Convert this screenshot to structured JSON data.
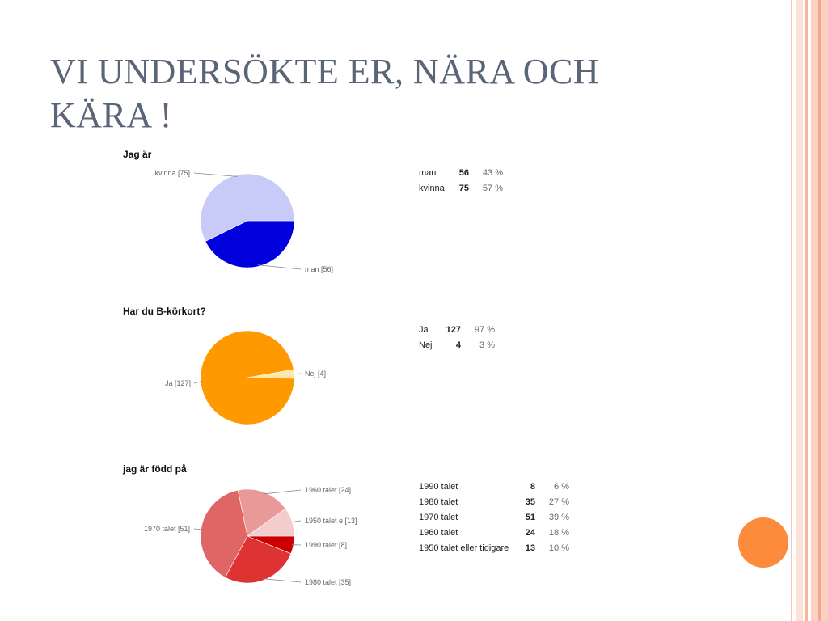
{
  "slide": {
    "title_line1": "VI UNDERSÖKTE ER, NÄRA OCH",
    "title_line2": "KÄRA  !"
  },
  "decor": {
    "stripe_colors": [
      "#f9c4b1",
      "#fde3d7",
      "#f7b49c"
    ],
    "circle_color": "#fd8b3c"
  },
  "chart_data": [
    {
      "type": "pie",
      "title": "Jag är",
      "slices": [
        {
          "label": "man",
          "count": 56,
          "percent": "43 %",
          "callout": "man [56]",
          "color": "#0000dd"
        },
        {
          "label": "kvinna",
          "count": 75,
          "percent": "57 %",
          "callout": "kvinna [75]",
          "color": "#c8cbf7"
        }
      ]
    },
    {
      "type": "pie",
      "title": "Har du B-körkort?",
      "slices": [
        {
          "label": "Ja",
          "count": 127,
          "percent": "97 %",
          "callout": "Ja [127]",
          "color": "#ff9900"
        },
        {
          "label": "Nej",
          "count": 4,
          "percent": "3 %",
          "callout": "Nej [4]",
          "color": "#fde7a9"
        }
      ]
    },
    {
      "type": "pie",
      "title": "jag är född på",
      "slices": [
        {
          "label": "1990 talet",
          "count": 8,
          "percent": "6 %",
          "callout": "1990 talet [8]",
          "color": "#cc0000"
        },
        {
          "label": "1980 talet",
          "count": 35,
          "percent": "27 %",
          "callout": "1980 talet [35]",
          "color": "#dd3333"
        },
        {
          "label": "1970 talet",
          "count": 51,
          "percent": "39 %",
          "callout": "1970 talet [51]",
          "color": "#e06666"
        },
        {
          "label": "1960 talet",
          "count": 24,
          "percent": "18 %",
          "callout": "1960 talet [24]",
          "color": "#ea9999"
        },
        {
          "label": "1950 talet eller tidigare",
          "count": 13,
          "percent": "10 %",
          "callout": "1950 talet e [13]",
          "color": "#f4cccc"
        }
      ]
    }
  ]
}
